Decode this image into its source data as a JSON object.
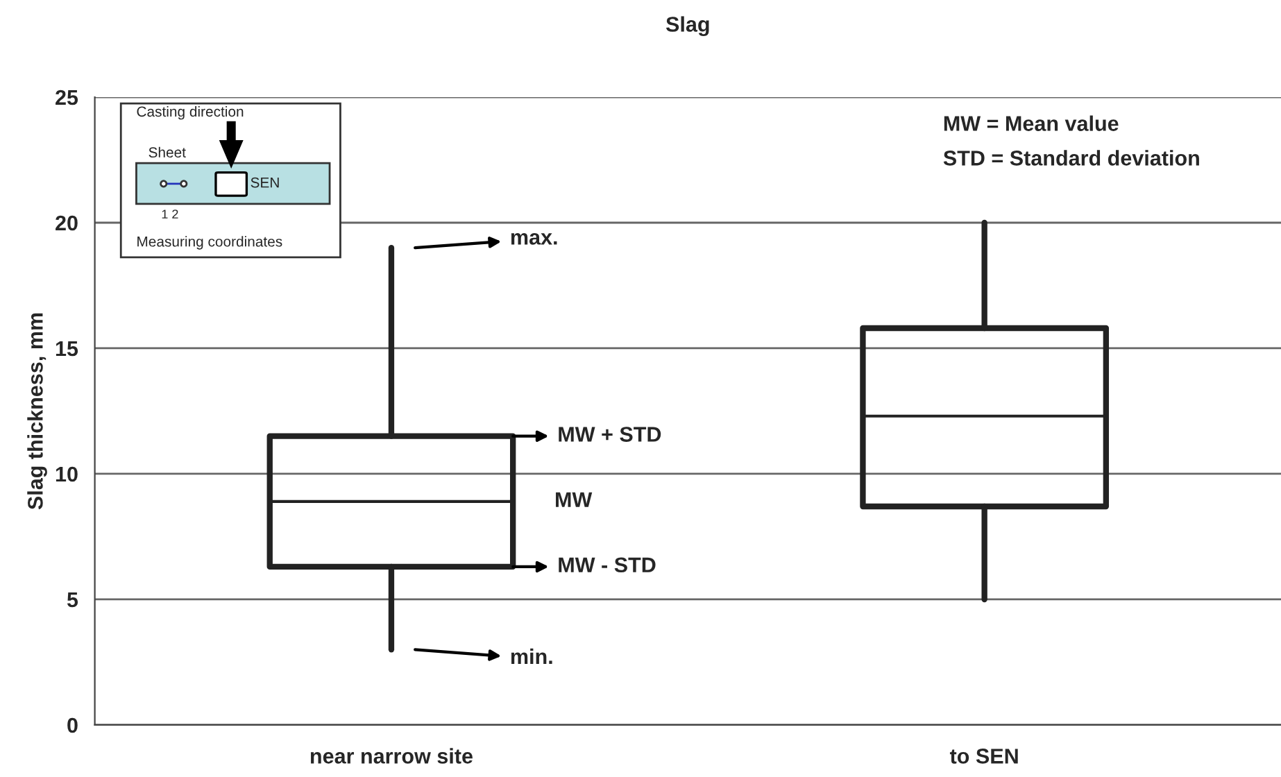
{
  "chart_data": {
    "type": "box",
    "title": "Slag",
    "ylabel": "Slag thickness, mm",
    "categories": [
      "near narrow site",
      "to SEN"
    ],
    "boxes": [
      {
        "low": 3.0,
        "q1": 6.3,
        "median": 8.9,
        "q3": 11.5,
        "high": 19.0
      },
      {
        "low": 5.0,
        "q1": 8.7,
        "median": 12.3,
        "q3": 15.8,
        "high": 20.0
      }
    ],
    "ylim": [
      0,
      25
    ],
    "yticks": [
      0,
      5,
      10,
      15,
      20,
      25
    ],
    "grid": "y",
    "annotations": [
      "max.",
      "MW + STD",
      "MW",
      "MW - STD",
      "min.",
      "MW = Mean value",
      "STD = Standard deviation",
      "Casting direction",
      "Sheet",
      "SEN",
      "1 2",
      "Measuring coordinates"
    ]
  }
}
